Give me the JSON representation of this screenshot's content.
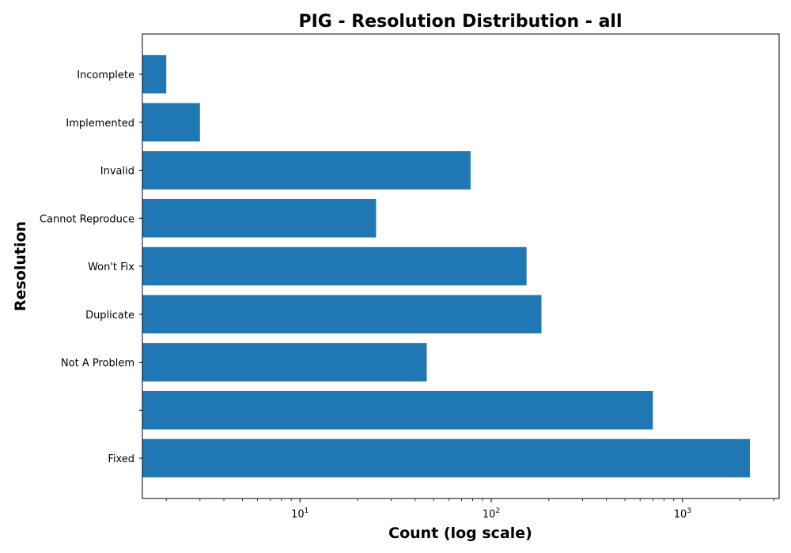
{
  "chart_data": {
    "type": "bar",
    "orientation": "horizontal",
    "title": "PIG - Resolution Distribution - all",
    "xlabel": "Count (log scale)",
    "ylabel": "Resolution",
    "x_scale": "log",
    "xlim": [
      1.5,
      3200
    ],
    "x_ticks": [
      10,
      100,
      1000
    ],
    "x_tick_labels": [
      {
        "base": "10",
        "exp": "1"
      },
      {
        "base": "10",
        "exp": "2"
      },
      {
        "base": "10",
        "exp": "3"
      }
    ],
    "categories": [
      "Incomplete",
      "Implemented",
      "Invalid",
      "Cannot Reproduce",
      "Won't Fix",
      "Duplicate",
      "Not A Problem",
      "",
      "Fixed"
    ],
    "values": [
      2,
      3,
      78,
      25,
      153,
      183,
      46,
      700,
      2250
    ],
    "color": "#1f77b4",
    "grid": false,
    "legend": "none"
  }
}
